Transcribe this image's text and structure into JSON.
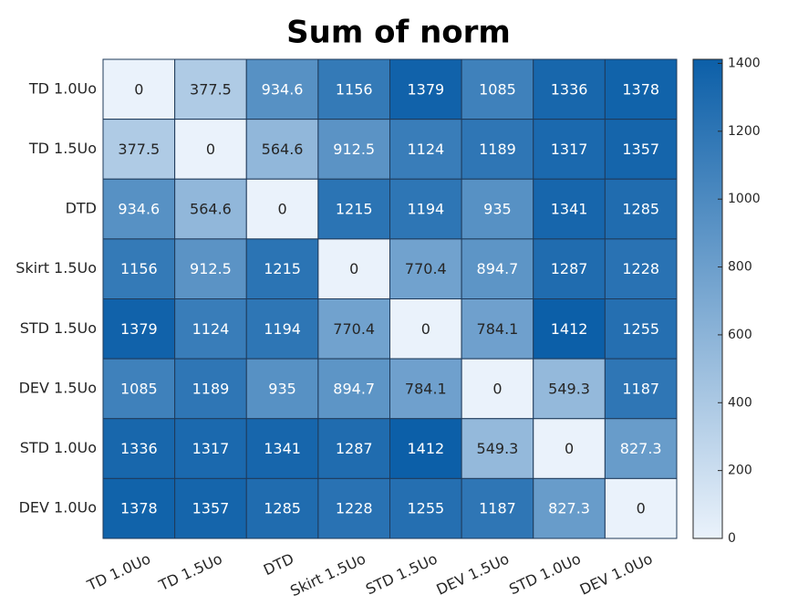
{
  "chart_data": {
    "type": "heatmap",
    "title": "Sum of norm",
    "xcategories": [
      "TD 1.0Uo",
      "TD 1.5Uo",
      "DTD",
      "Skirt 1.5Uo",
      "STD 1.5Uo",
      "DEV 1.5Uo",
      "STD 1.0Uo",
      "DEV 1.0Uo"
    ],
    "ycategories": [
      "TD 1.0Uo",
      "TD 1.5Uo",
      "DTD",
      "Skirt 1.5Uo",
      "STD 1.5Uo",
      "DEV 1.5Uo",
      "STD 1.0Uo",
      "DEV 1.0Uo"
    ],
    "values": [
      [
        0,
        377.5,
        934.6,
        1156,
        1379,
        1085,
        1336,
        1378
      ],
      [
        377.5,
        0,
        564.6,
        912.5,
        1124,
        1189,
        1317,
        1357
      ],
      [
        934.6,
        564.6,
        0,
        1215,
        1194,
        935,
        1341,
        1285
      ],
      [
        1156,
        912.5,
        1215,
        0,
        770.4,
        894.7,
        1287,
        1228
      ],
      [
        1379,
        1124,
        1194,
        770.4,
        0,
        784.1,
        1412,
        1255
      ],
      [
        1085,
        1189,
        935,
        894.7,
        784.1,
        0,
        549.3,
        1187
      ],
      [
        1336,
        1317,
        1341,
        1287,
        1412,
        549.3,
        0,
        827.3
      ],
      [
        1378,
        1357,
        1285,
        1228,
        1255,
        1187,
        827.3,
        0
      ]
    ],
    "colormap": [
      "#eaf2fb",
      "#0c5fa8"
    ],
    "clim": [
      0,
      1412
    ],
    "cticks": [
      0,
      200,
      400,
      600,
      800,
      1000,
      1200,
      1400
    ]
  }
}
